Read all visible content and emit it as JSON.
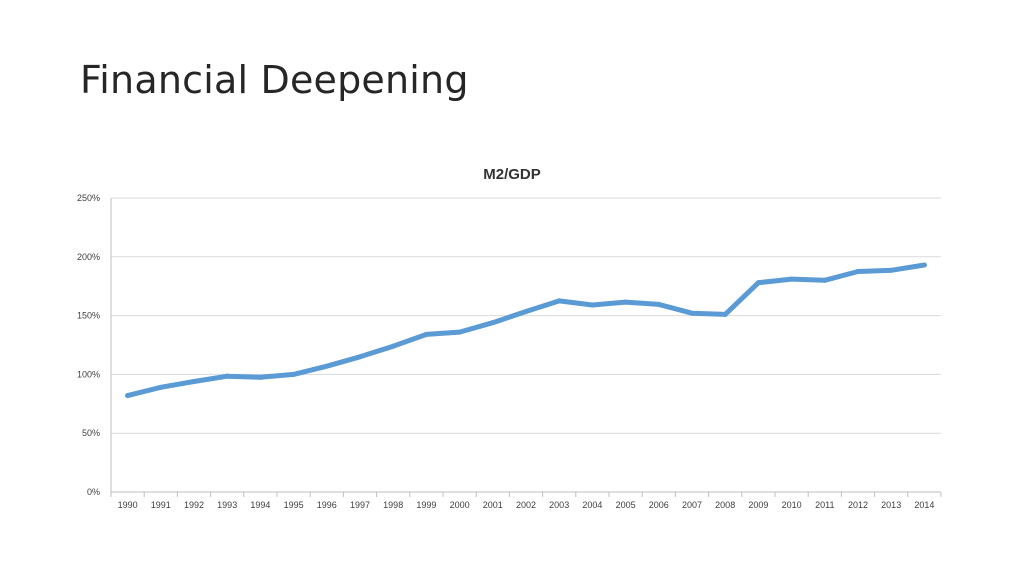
{
  "slide": {
    "title": "Financial Deepening"
  },
  "colors": {
    "series_line": "#5b9bd5",
    "gridline": "#d9d9d9",
    "text": "#404040"
  },
  "chart_data": {
    "type": "line",
    "title": "M2/GDP",
    "xlabel": "",
    "ylabel": "",
    "grid": true,
    "legend": "none",
    "ylim": [
      0,
      250
    ],
    "y_unit": "%",
    "y_ticks": [
      0,
      50,
      100,
      150,
      200,
      250
    ],
    "y_tick_labels": [
      "0%",
      "50%",
      "100%",
      "150%",
      "200%",
      "250%"
    ],
    "categories": [
      "1990",
      "1991",
      "1992",
      "1993",
      "1994",
      "1995",
      "1996",
      "1997",
      "1998",
      "1999",
      "2000",
      "2001",
      "2002",
      "2003",
      "2004",
      "2005",
      "2006",
      "2007",
      "2008",
      "2009",
      "2010",
      "2011",
      "2012",
      "2013",
      "2014"
    ],
    "series": [
      {
        "values": [
          82,
          89,
          94,
          98.5,
          97.5,
          100,
          107,
          115,
          124,
          134,
          136,
          144,
          153.5,
          162.5,
          159,
          161.5,
          159.5,
          152,
          151,
          178,
          181,
          180,
          187.5,
          188.5,
          193
        ]
      }
    ]
  }
}
